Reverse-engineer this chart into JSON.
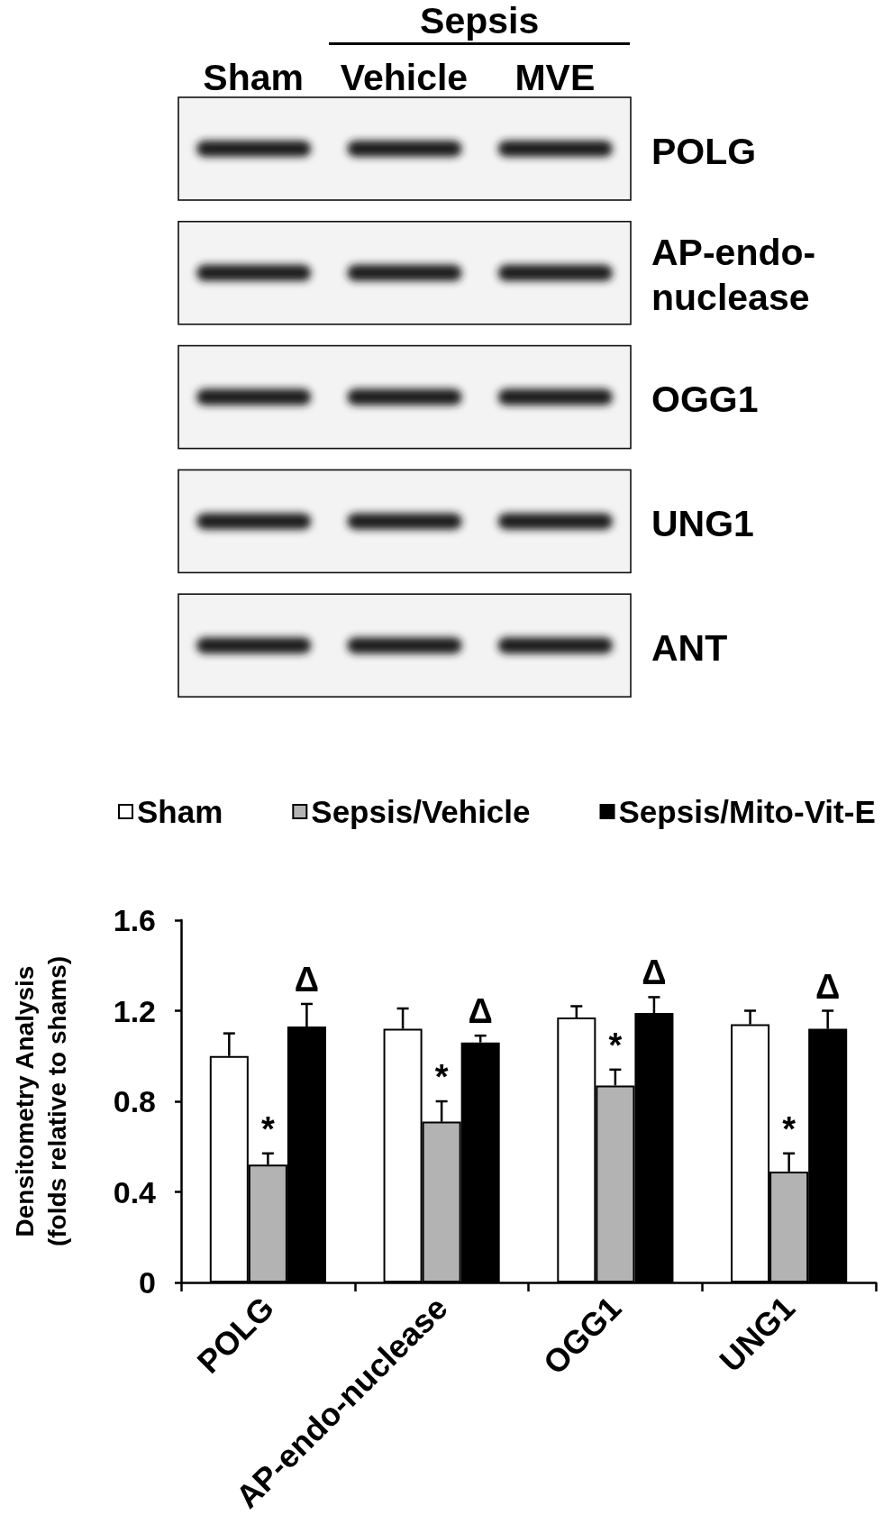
{
  "chart_data": [
    {
      "type": "other",
      "categories": [
        "Sham",
        "Vehicle",
        "MVE"
      ],
      "y_categories": [
        "POLG",
        "AP-endo-nuclease",
        "OGG1",
        "UNG1",
        "ANT"
      ],
      "annotations": [
        "Sepsis"
      ]
    },
    {
      "type": "bar",
      "categories": [
        "POLG",
        "AP-endo-nuclease",
        "OGG1",
        "UNG1"
      ],
      "ylabel": "Densitometry Analysis (folds relative to shams)",
      "ylim": [
        0,
        1.6
      ],
      "yticks": [
        0,
        0.4,
        0.8,
        1.2,
        1.6
      ],
      "legend": "top",
      "series": [
        {
          "name": "Sham",
          "color": "#ffffff",
          "values": [
            1.0,
            1.12,
            1.17,
            1.14
          ],
          "errors": [
            [
              1.0,
              1.1
            ],
            [
              1.12,
              1.21
            ],
            [
              1.17,
              1.22
            ],
            [
              1.14,
              1.2
            ]
          ]
        },
        {
          "name": "Sepsis/Vehicle",
          "color": "#b3b3b3",
          "values": [
            0.52,
            0.71,
            0.87,
            0.49
          ],
          "errors": [
            [
              0.52,
              0.57
            ],
            [
              0.71,
              0.8
            ],
            [
              0.87,
              0.94
            ],
            [
              0.49,
              0.57
            ]
          ],
          "value_labels": [
            "*",
            "*",
            "*",
            "*"
          ]
        },
        {
          "name": "Sepsis/Mito-Vit-E",
          "color": "#000000",
          "values": [
            1.13,
            1.06,
            1.19,
            1.12
          ],
          "errors": [
            [
              1.13,
              1.23
            ],
            [
              1.06,
              1.09
            ],
            [
              1.19,
              1.26
            ],
            [
              1.12,
              1.2
            ]
          ],
          "value_labels": [
            "Δ",
            "Δ",
            "Δ",
            "Δ"
          ]
        }
      ]
    }
  ]
}
